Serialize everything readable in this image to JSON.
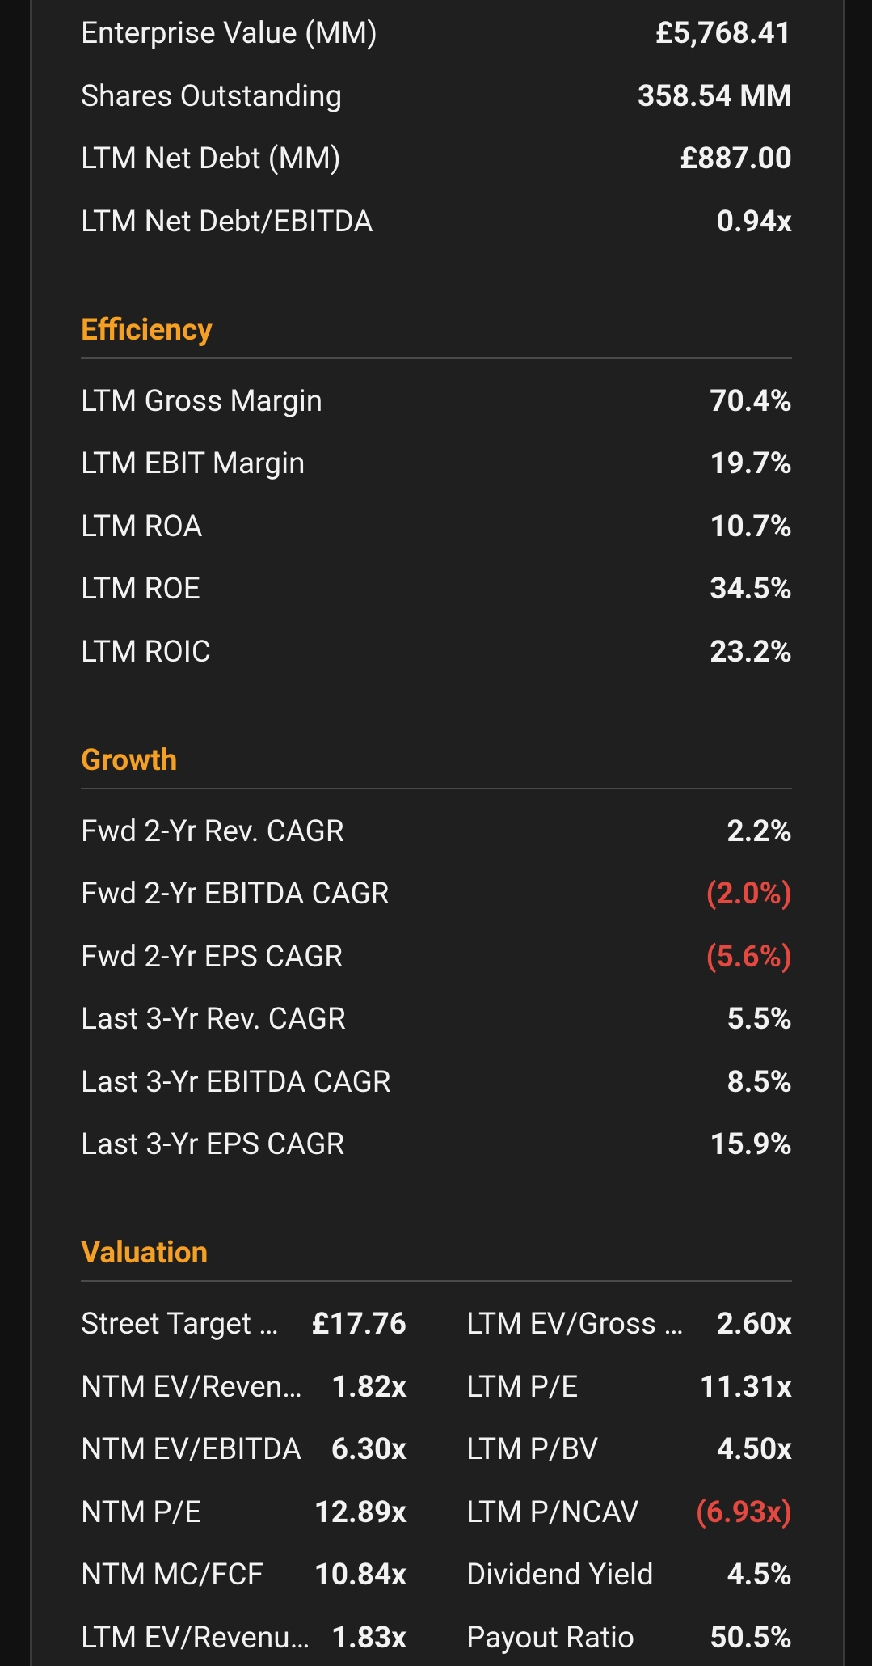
{
  "top_rows": [
    {
      "label": "Enterprise Value (MM)",
      "value": "£5,768.41"
    },
    {
      "label": "Shares Outstanding",
      "value": "358.54 MM"
    },
    {
      "label": "LTM Net Debt (MM)",
      "value": "£887.00"
    },
    {
      "label": "LTM Net Debt/EBITDA",
      "value": "0.94x"
    }
  ],
  "sections": [
    {
      "title": "Efficiency",
      "rows": [
        {
          "label": "LTM Gross Margin",
          "value": "70.4%"
        },
        {
          "label": "LTM EBIT Margin",
          "value": "19.7%"
        },
        {
          "label": "LTM ROA",
          "value": "10.7%"
        },
        {
          "label": "LTM ROE",
          "value": "34.5%"
        },
        {
          "label": "LTM ROIC",
          "value": "23.2%"
        }
      ]
    },
    {
      "title": "Growth",
      "rows": [
        {
          "label": "Fwd 2-Yr Rev. CAGR",
          "value": "2.2%"
        },
        {
          "label": "Fwd 2-Yr EBITDA CAGR",
          "value": "(2.0%)"
        },
        {
          "label": "Fwd 2-Yr EPS CAGR",
          "value": "(5.6%)"
        },
        {
          "label": "Last 3-Yr Rev. CAGR",
          "value": "5.5%"
        },
        {
          "label": "Last 3-Yr EBITDA CAGR",
          "value": "8.5%"
        },
        {
          "label": "Last 3-Yr EPS CAGR",
          "value": "15.9%"
        }
      ]
    },
    {
      "title": "Valuation",
      "rows": [
        [
          {
            "label": "Street Target …",
            "value": "£17.76"
          },
          {
            "label": "LTM EV/Gross …",
            "value": "2.60x"
          }
        ],
        [
          {
            "label": "NTM EV/Reven…",
            "value": "1.82x"
          },
          {
            "label": "LTM P/E",
            "value": "11.31x"
          }
        ],
        [
          {
            "label": "NTM EV/EBITDA",
            "value": "6.30x"
          },
          {
            "label": "LTM P/BV",
            "value": "4.50x"
          }
        ],
        [
          {
            "label": "NTM P/E",
            "value": "12.89x"
          },
          {
            "label": "LTM P/NCAV",
            "value": "(6.93x)"
          }
        ],
        [
          {
            "label": "NTM MC/FCF",
            "value": "10.84x"
          },
          {
            "label": "Dividend Yield",
            "value": "4.5%"
          }
        ],
        [
          {
            "label": "LTM EV/Revenu…",
            "value": "1.83x"
          },
          {
            "label": "Payout Ratio",
            "value": "50.5%"
          }
        ]
      ]
    }
  ]
}
